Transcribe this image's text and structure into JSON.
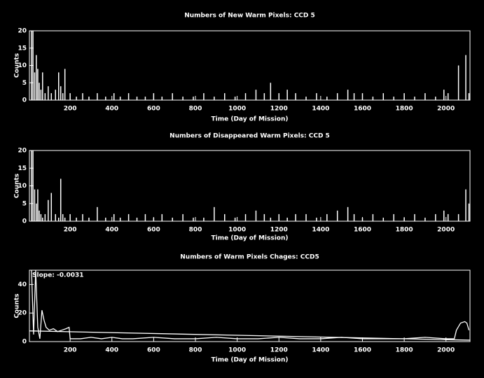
{
  "chart_data": [
    {
      "type": "bar",
      "title": "Numbers of New Warm Pixels: CCD 5",
      "x_label": "Time (Day of Mission)",
      "y_label": "Counts",
      "color": "#ffffff",
      "x": [
        15,
        22,
        30,
        38,
        45,
        52,
        60,
        68,
        80,
        95,
        110,
        130,
        145,
        155,
        165,
        175,
        200,
        230,
        260,
        290,
        330,
        370,
        410,
        440,
        480,
        520,
        560,
        600,
        640,
        690,
        740,
        790,
        840,
        890,
        940,
        990,
        1040,
        1090,
        1130,
        1160,
        1200,
        1240,
        1280,
        1330,
        1380,
        1430,
        1480,
        1530,
        1560,
        1600,
        1650,
        1700,
        1750,
        1800,
        1850,
        1900,
        1950,
        1990,
        2010,
        2060,
        2095,
        2110
      ],
      "values": [
        20,
        20,
        8,
        13,
        9,
        5,
        3,
        8,
        2,
        4,
        2,
        3,
        8,
        4,
        2,
        9,
        2,
        1,
        2,
        1,
        2,
        1,
        2,
        1,
        2,
        1,
        1,
        2,
        1,
        2,
        1,
        1,
        2,
        1,
        2,
        1,
        2,
        3,
        2,
        5,
        2,
        3,
        2,
        1,
        2,
        1,
        2,
        3,
        2,
        2,
        1,
        2,
        1,
        2,
        1,
        2,
        1,
        3,
        2,
        10,
        13,
        2
      ],
      "xlim": [
        5,
        2115
      ],
      "ylim": [
        0,
        20
      ],
      "xticks": [
        200,
        400,
        600,
        800,
        1000,
        1200,
        1400,
        1600,
        1800,
        2000
      ],
      "yticks": [
        0,
        5,
        10,
        15,
        20
      ]
    },
    {
      "type": "bar",
      "title": "Numbers of Disappeared Warm Pixels: CCD 5",
      "x_label": "Time (Day of Mission)",
      "y_label": "Counts",
      "color": "#ffffff",
      "x": [
        15,
        22,
        30,
        38,
        45,
        52,
        60,
        68,
        80,
        95,
        110,
        130,
        145,
        155,
        165,
        175,
        200,
        230,
        260,
        290,
        330,
        370,
        410,
        440,
        480,
        520,
        560,
        600,
        640,
        690,
        740,
        790,
        840,
        890,
        940,
        990,
        1040,
        1090,
        1130,
        1160,
        1200,
        1240,
        1280,
        1330,
        1380,
        1430,
        1480,
        1530,
        1560,
        1600,
        1650,
        1700,
        1750,
        1800,
        1850,
        1900,
        1950,
        1990,
        2010,
        2060,
        2095,
        2110
      ],
      "values": [
        20,
        20,
        9,
        5,
        9,
        3,
        2,
        1,
        2,
        6,
        8,
        2,
        1,
        12,
        2,
        1,
        2,
        1,
        2,
        1,
        4,
        1,
        2,
        1,
        2,
        1,
        2,
        1,
        2,
        1,
        2,
        1,
        1,
        4,
        2,
        1,
        2,
        3,
        2,
        1,
        2,
        1,
        2,
        2,
        1,
        2,
        3,
        4,
        2,
        1,
        2,
        1,
        2,
        1,
        2,
        1,
        2,
        3,
        2,
        2,
        9,
        5
      ],
      "xlim": [
        5,
        2115
      ],
      "ylim": [
        0,
        20
      ],
      "xticks": [
        200,
        400,
        600,
        800,
        1000,
        1200,
        1400,
        1600,
        1800,
        2000
      ],
      "yticks": [
        0,
        5,
        10,
        15,
        20
      ]
    },
    {
      "type": "line",
      "title": "Numbers of Warm Pixels Chages: CCD5",
      "x_label": "Time (Day of Mission)",
      "y_label": "Counts",
      "annotation": "Slope: -0.0031",
      "series": [
        {
          "color": "#ffffff",
          "x": [
            15,
            25,
            35,
            45,
            55,
            65,
            75,
            85,
            100,
            120,
            140,
            160,
            180,
            195,
            200,
            250,
            300,
            350,
            400,
            450,
            500,
            600,
            700,
            800,
            900,
            1000,
            1100,
            1200,
            1300,
            1400,
            1500,
            1600,
            1700,
            1800,
            1900,
            2000,
            2040,
            2050,
            2070,
            2090,
            2100,
            2110
          ],
          "values": [
            50,
            5,
            50,
            10,
            2,
            22,
            15,
            10,
            8,
            9,
            7,
            8,
            9,
            10,
            2,
            2,
            3,
            2,
            3,
            2,
            2,
            3,
            2,
            2,
            3,
            2,
            2,
            3,
            2,
            2,
            3,
            2,
            2,
            2,
            3,
            2,
            2,
            8,
            13,
            14,
            13,
            8
          ]
        },
        {
          "color": "#ffffff",
          "x": [
            5,
            2115
          ],
          "values": [
            7.5,
            1.0
          ]
        }
      ],
      "xlim": [
        5,
        2115
      ],
      "ylim": [
        0,
        50
      ],
      "xticks": [
        200,
        400,
        600,
        800,
        1000,
        1200,
        1400,
        1600,
        1800,
        2000
      ],
      "yticks": [
        0,
        20,
        40
      ]
    }
  ]
}
